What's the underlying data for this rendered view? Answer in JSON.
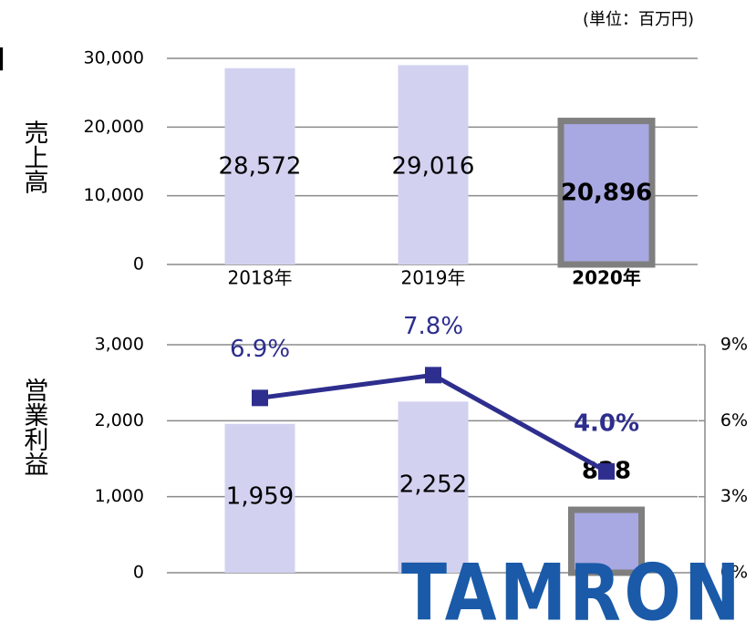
{
  "bracket": "】",
  "unit_label": "(単位：百万円)",
  "logo": "TAMRON",
  "chart_data": [
    {
      "type": "bar",
      "ylabel": "売上高",
      "categories": [
        "2018年",
        "2019年",
        "2020年"
      ],
      "values": [
        28572,
        29016,
        20896
      ],
      "value_labels": [
        "28,572",
        "29,016",
        "20,896"
      ],
      "color": "#d2d2f0",
      "highlight": 2,
      "highlight_color": "#a8a8e2",
      "ylim": [
        0,
        30000
      ],
      "yticks": [
        0,
        {
          "value": 10000,
          "label": "10,000"
        },
        {
          "value": 20000,
          "label": "20,000"
        },
        {
          "value": 30000,
          "label": "30,000"
        }
      ],
      "grid": true
    },
    {
      "type": "bar_line",
      "ylabel": "営業利益",
      "series": [
        {
          "color": "#d2d2f0",
          "values": [
            1959,
            2252,
            828
          ],
          "value_labels": [
            "1,959",
            "2,252",
            "828"
          ]
        },
        {
          "color": "#2e2e8e",
          "axis": "y2",
          "values": [
            6.9,
            7.8,
            4.0
          ],
          "value_labels": [
            "6.9%",
            "7.8%",
            "4.0%"
          ]
        }
      ],
      "highlight": 2,
      "highlight_color": "#a8a8e2",
      "ylim": [
        0,
        3000
      ],
      "yticks": [
        0,
        {
          "value": 1000,
          "label": "1,000"
        },
        {
          "value": 2000,
          "label": "2,000"
        },
        {
          "value": 3000,
          "label": "3,000"
        }
      ],
      "y2lim": [
        0,
        9
      ],
      "y2ticks": [
        {
          "value": 0,
          "label": "0%"
        },
        {
          "value": 3,
          "label": "3%"
        },
        {
          "value": 6,
          "label": "6%"
        },
        {
          "value": 9,
          "label": "9%"
        }
      ],
      "grid": true
    }
  ]
}
